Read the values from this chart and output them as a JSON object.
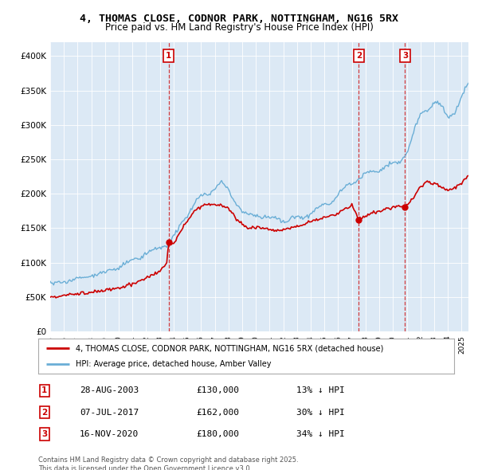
{
  "title": "4, THOMAS CLOSE, CODNOR PARK, NOTTINGHAM, NG16 5RX",
  "subtitle": "Price paid vs. HM Land Registry's House Price Index (HPI)",
  "bg_color": "#dce9f5",
  "hpi_color": "#6aaed6",
  "price_color": "#cc0000",
  "vline_color": "#cc0000",
  "ylim": [
    0,
    420000
  ],
  "yticks": [
    0,
    50000,
    100000,
    150000,
    200000,
    250000,
    300000,
    350000,
    400000
  ],
  "ytick_labels": [
    "£0",
    "£50K",
    "£100K",
    "£150K",
    "£200K",
    "£250K",
    "£300K",
    "£350K",
    "£400K"
  ],
  "sale_dates": [
    2003.65,
    2017.51,
    2020.88
  ],
  "sale_prices": [
    130000,
    162000,
    180000
  ],
  "sale_labels": [
    "1",
    "2",
    "3"
  ],
  "sale_info": [
    [
      "1",
      "28-AUG-2003",
      "£130,000",
      "13% ↓ HPI"
    ],
    [
      "2",
      "07-JUL-2017",
      "£162,000",
      "30% ↓ HPI"
    ],
    [
      "3",
      "16-NOV-2020",
      "£180,000",
      "34% ↓ HPI"
    ]
  ],
  "legend_label_red": "4, THOMAS CLOSE, CODNOR PARK, NOTTINGHAM, NG16 5RX (detached house)",
  "legend_label_blue": "HPI: Average price, detached house, Amber Valley",
  "footer": "Contains HM Land Registry data © Crown copyright and database right 2025.\nThis data is licensed under the Open Government Licence v3.0.",
  "xstart": 1995.0,
  "xend": 2025.5
}
